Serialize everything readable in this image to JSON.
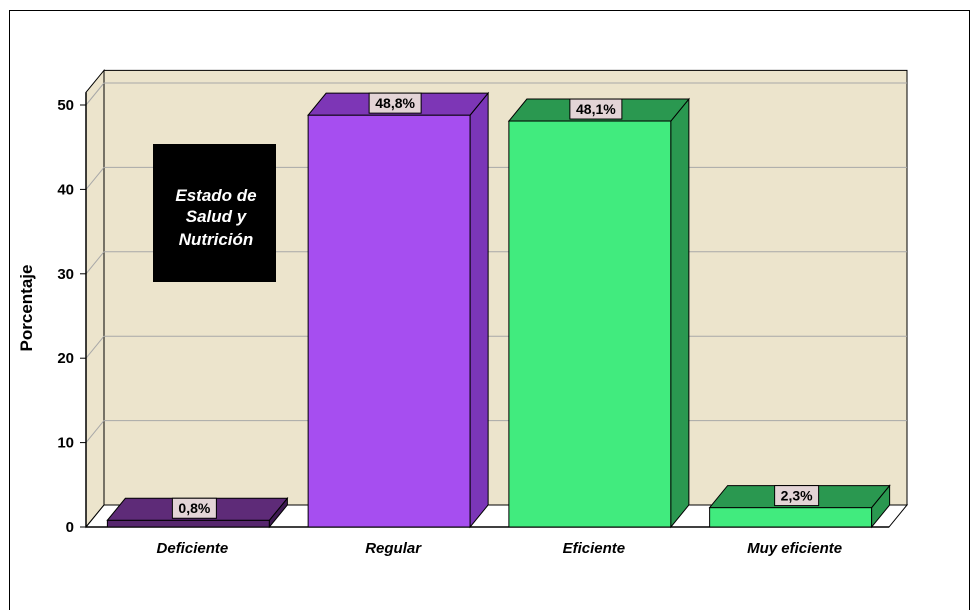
{
  "chart_data": {
    "type": "bar",
    "categories": [
      "Deficiente",
      "Regular",
      "Eficiente",
      "Muy eficiente"
    ],
    "values": [
      0.8,
      48.8,
      48.1,
      2.3
    ],
    "data_labels": [
      "0,8%",
      "48,8%",
      "48,1%",
      "2,3%"
    ],
    "ylabel": "Porcentaje",
    "xlabel": "",
    "ylim": [
      0,
      50
    ],
    "yticks": [
      0,
      10,
      20,
      30,
      40,
      50
    ],
    "grid": true,
    "annotation": [
      "Estado de",
      "Salud y",
      "Nutrición"
    ]
  },
  "colors": {
    "wall": "#ece4cc",
    "bars": [
      {
        "front": "#56266e",
        "side": "#3e1a52",
        "top": "#5e2b78"
      },
      {
        "front": "#a64ef0",
        "side": "#7b36b8",
        "top": "#7d36b6"
      },
      {
        "front": "#41eb7e",
        "side": "#2a9850",
        "top": "#2a9850"
      },
      {
        "front": "#41eb7e",
        "side": "#2a9850",
        "top": "#2a9850"
      }
    ],
    "label_box": "#e3d4d6",
    "annotation_bg": "#000000"
  }
}
